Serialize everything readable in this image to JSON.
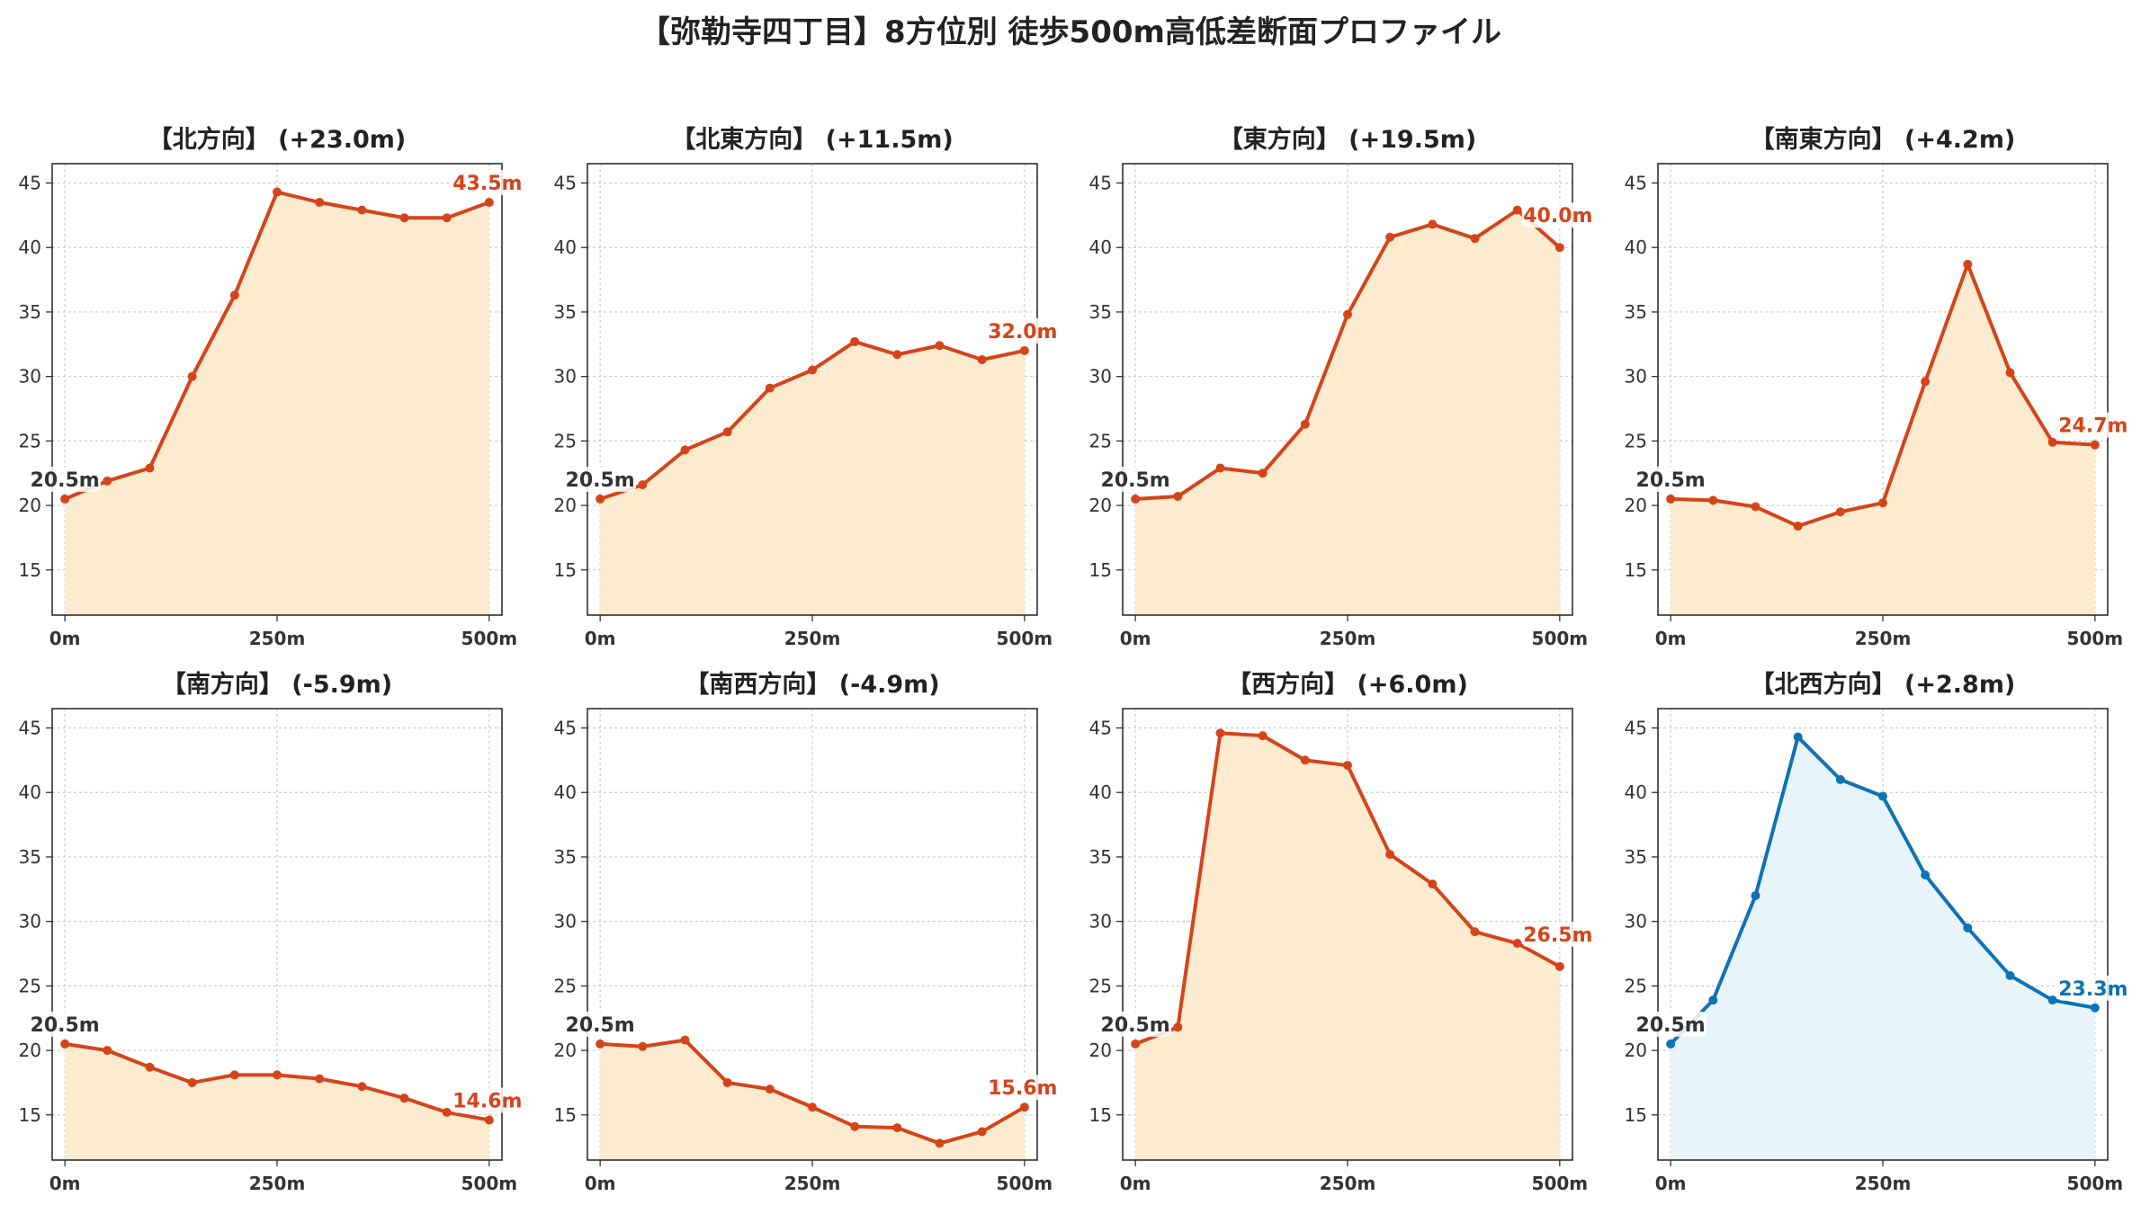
{
  "title": "【弥勒寺四丁目】8方位別 徒歩500m高低差断面プロファイル",
  "colors": {
    "descent": "#d4441a",
    "descent_fill": "#fdebd0",
    "ascent_peak": "#0e72b5",
    "ascent_fill": "#e8f4fb",
    "start_label": "#333333",
    "grid": "#cccccc"
  },
  "chart_data": [
    {
      "type": "area",
      "title": "【北方向】 (+23.0m)",
      "x": [
        0,
        50,
        100,
        150,
        200,
        250,
        300,
        350,
        400,
        450,
        500
      ],
      "values": [
        20.5,
        21.9,
        22.9,
        30.0,
        36.3,
        44.3,
        43.5,
        42.9,
        42.3,
        42.3,
        43.5
      ],
      "start_label": "20.5m",
      "end_label": "43.5m",
      "xticks": [
        "0m",
        "250m",
        "500m"
      ],
      "yticks": [
        15,
        20,
        25,
        30,
        35,
        40,
        45
      ],
      "ylim": [
        11.5,
        46.5
      ],
      "xlim": [
        -15,
        515
      ],
      "grid": true,
      "color_key": "descent"
    },
    {
      "type": "area",
      "title": "【北東方向】 (+11.5m)",
      "x": [
        0,
        50,
        100,
        150,
        200,
        250,
        300,
        350,
        400,
        450,
        500
      ],
      "values": [
        20.5,
        21.6,
        24.3,
        25.7,
        29.1,
        30.5,
        32.7,
        31.7,
        32.4,
        31.3,
        32.0
      ],
      "start_label": "20.5m",
      "end_label": "32.0m",
      "xticks": [
        "0m",
        "250m",
        "500m"
      ],
      "yticks": [
        15,
        20,
        25,
        30,
        35,
        40,
        45
      ],
      "ylim": [
        11.5,
        46.5
      ],
      "xlim": [
        -15,
        515
      ],
      "grid": true,
      "color_key": "descent"
    },
    {
      "type": "area",
      "title": "【東方向】 (+19.5m)",
      "x": [
        0,
        50,
        100,
        150,
        200,
        250,
        300,
        350,
        400,
        450,
        500
      ],
      "values": [
        20.5,
        20.7,
        22.9,
        22.5,
        26.3,
        34.8,
        40.8,
        41.8,
        40.7,
        42.9,
        40.0
      ],
      "start_label": "20.5m",
      "end_label": "40.0m",
      "xticks": [
        "0m",
        "250m",
        "500m"
      ],
      "yticks": [
        15,
        20,
        25,
        30,
        35,
        40,
        45
      ],
      "ylim": [
        11.5,
        46.5
      ],
      "xlim": [
        -15,
        515
      ],
      "grid": true,
      "color_key": "descent"
    },
    {
      "type": "area",
      "title": "【南東方向】 (+4.2m)",
      "x": [
        0,
        50,
        100,
        150,
        200,
        250,
        300,
        350,
        400,
        450,
        500
      ],
      "values": [
        20.5,
        20.4,
        19.9,
        18.4,
        19.5,
        20.2,
        29.6,
        38.7,
        30.3,
        24.9,
        24.7
      ],
      "start_label": "20.5m",
      "end_label": "24.7m",
      "xticks": [
        "0m",
        "250m",
        "500m"
      ],
      "yticks": [
        15,
        20,
        25,
        30,
        35,
        40,
        45
      ],
      "ylim": [
        11.5,
        46.5
      ],
      "xlim": [
        -15,
        515
      ],
      "grid": true,
      "color_key": "descent"
    },
    {
      "type": "area",
      "title": "【南方向】 (-5.9m)",
      "x": [
        0,
        50,
        100,
        150,
        200,
        250,
        300,
        350,
        400,
        450,
        500
      ],
      "values": [
        20.5,
        20.0,
        18.7,
        17.5,
        18.1,
        18.1,
        17.8,
        17.2,
        16.3,
        15.2,
        14.6
      ],
      "start_label": "20.5m",
      "end_label": "14.6m",
      "xticks": [
        "0m",
        "250m",
        "500m"
      ],
      "yticks": [
        15,
        20,
        25,
        30,
        35,
        40,
        45
      ],
      "ylim": [
        11.5,
        46.5
      ],
      "xlim": [
        -15,
        515
      ],
      "grid": true,
      "color_key": "descent"
    },
    {
      "type": "area",
      "title": "【南西方向】 (-4.9m)",
      "x": [
        0,
        50,
        100,
        150,
        200,
        250,
        300,
        350,
        400,
        450,
        500
      ],
      "values": [
        20.5,
        20.3,
        20.8,
        17.5,
        17.0,
        15.6,
        14.1,
        14.0,
        12.8,
        13.7,
        15.6
      ],
      "start_label": "20.5m",
      "end_label": "15.6m",
      "xticks": [
        "0m",
        "250m",
        "500m"
      ],
      "yticks": [
        15,
        20,
        25,
        30,
        35,
        40,
        45
      ],
      "ylim": [
        11.5,
        46.5
      ],
      "xlim": [
        -15,
        515
      ],
      "grid": true,
      "color_key": "descent"
    },
    {
      "type": "area",
      "title": "【西方向】 (+6.0m)",
      "x": [
        0,
        50,
        100,
        150,
        200,
        250,
        300,
        350,
        400,
        450,
        500
      ],
      "values": [
        20.5,
        21.8,
        44.6,
        44.4,
        42.5,
        42.1,
        35.2,
        32.9,
        29.2,
        28.3,
        26.5
      ],
      "start_label": "20.5m",
      "end_label": "26.5m",
      "xticks": [
        "0m",
        "250m",
        "500m"
      ],
      "yticks": [
        15,
        20,
        25,
        30,
        35,
        40,
        45
      ],
      "ylim": [
        11.5,
        46.5
      ],
      "xlim": [
        -15,
        515
      ],
      "grid": true,
      "color_key": "descent"
    },
    {
      "type": "area",
      "title": "【北西方向】 (+2.8m)",
      "x": [
        0,
        50,
        100,
        150,
        200,
        250,
        300,
        350,
        400,
        450,
        500
      ],
      "values": [
        20.5,
        23.9,
        32.0,
        44.3,
        41.0,
        39.7,
        33.6,
        29.5,
        25.8,
        23.9,
        23.3
      ],
      "start_label": "20.5m",
      "end_label": "23.3m",
      "xticks": [
        "0m",
        "250m",
        "500m"
      ],
      "yticks": [
        15,
        20,
        25,
        30,
        35,
        40,
        45
      ],
      "ylim": [
        11.5,
        46.5
      ],
      "xlim": [
        -15,
        515
      ],
      "grid": true,
      "color_key": "ascent_peak"
    }
  ]
}
